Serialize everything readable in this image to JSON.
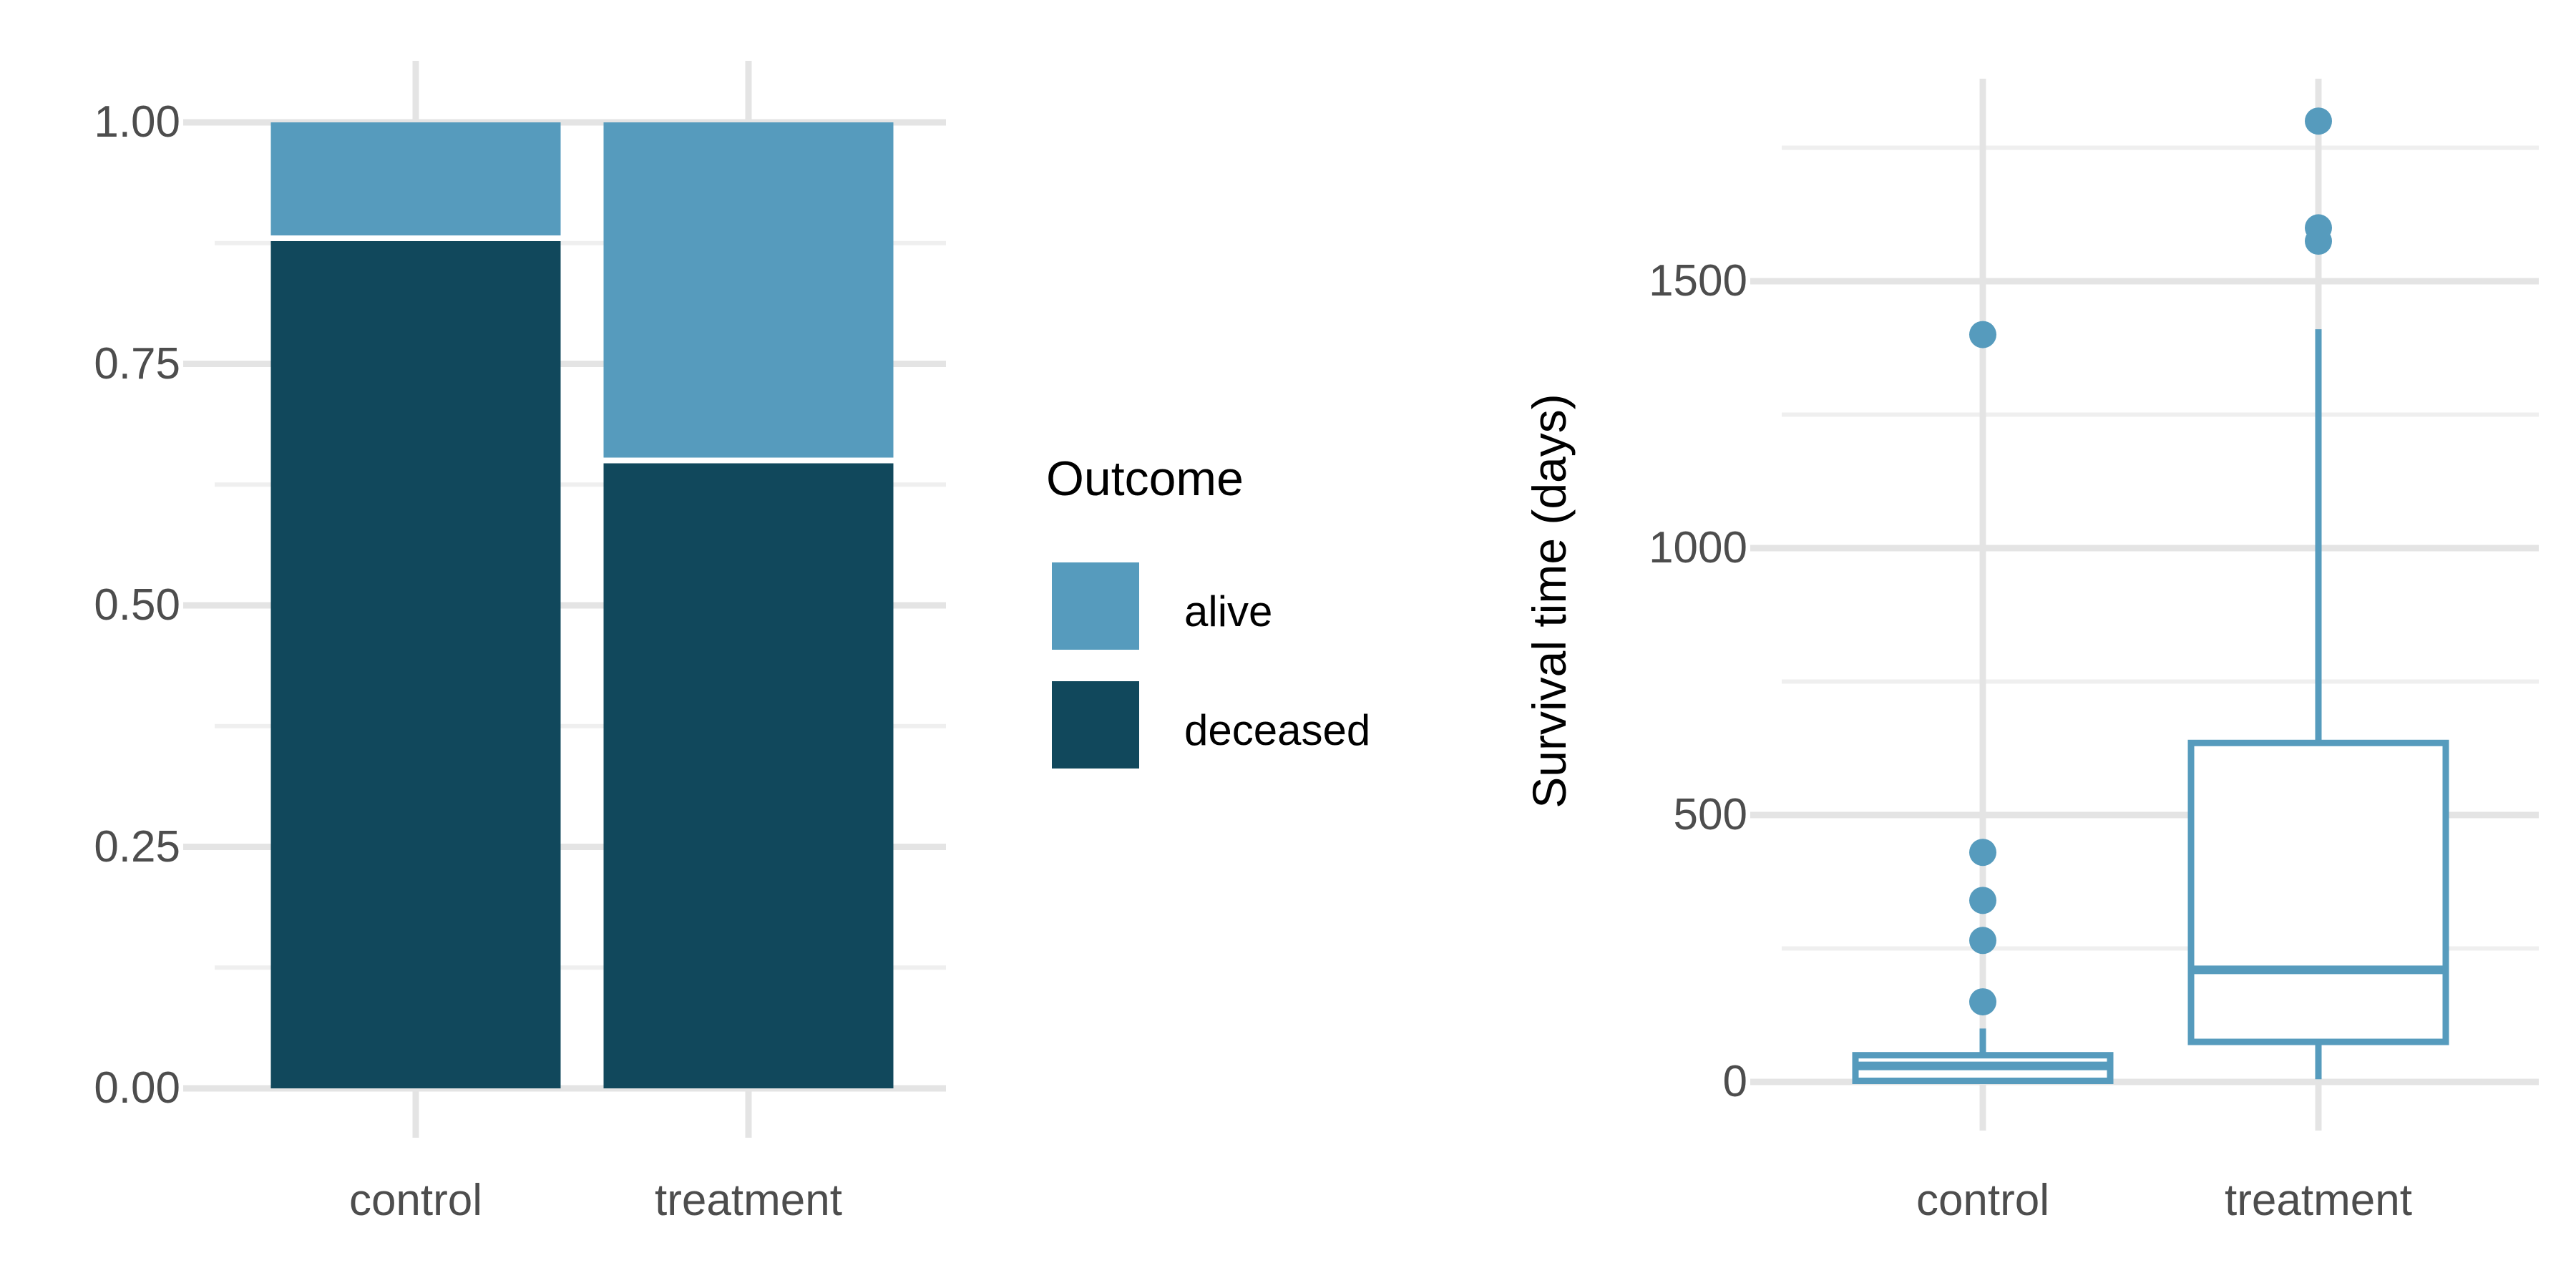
{
  "figure": {
    "background": "#FFFFFF"
  },
  "colors": {
    "alive": "#569BBD",
    "deceased": "#11485C",
    "box_stroke": "#569BBD",
    "grid_major": "#E4E4E4",
    "grid_minor": "#EFEFEF",
    "tick_text": "#4D4D4D",
    "axis_text": "#000000",
    "separator": "#FFFFFF"
  },
  "legend": {
    "title": "Outcome",
    "items": [
      {
        "label": "alive",
        "color": "#569BBD"
      },
      {
        "label": "deceased",
        "color": "#11485C"
      }
    ]
  },
  "left_axis": {
    "yticks": [
      "1.00",
      "0.75",
      "0.50",
      "0.25",
      "0.00"
    ],
    "xlabels": [
      "control",
      "treatment"
    ]
  },
  "right_axis": {
    "title": "Survival time (days)",
    "yticks": [
      "1500",
      "1000",
      "500",
      "0"
    ],
    "xlabels": [
      "control",
      "treatment"
    ]
  },
  "chart_data": [
    {
      "type": "bar",
      "subtype": "stacked-proportion",
      "panel": "left",
      "categories": [
        "control",
        "treatment"
      ],
      "series": [
        {
          "name": "alive",
          "values": [
            0.12,
            0.35
          ]
        },
        {
          "name": "deceased",
          "values": [
            0.88,
            0.65
          ]
        }
      ],
      "title": "",
      "xlabel": "",
      "ylabel": "",
      "ylim": [
        0,
        1
      ],
      "yticks_major": [
        0,
        0.25,
        0.5,
        0.75,
        1.0
      ],
      "yticks_minor": [
        0.125,
        0.375,
        0.625,
        0.875
      ],
      "grid": true,
      "legend_title": "Outcome",
      "legend_position": "right"
    },
    {
      "type": "boxplot",
      "panel": "right",
      "categories": [
        "control",
        "treatment"
      ],
      "title": "",
      "xlabel": "",
      "ylabel": "Survival time (days)",
      "ylim": [
        0,
        1870
      ],
      "yticks_major": [
        0,
        500,
        1000,
        1500
      ],
      "yticks_minor": [
        250,
        750,
        1250,
        1750
      ],
      "grid": true,
      "boxes": [
        {
          "category": "control",
          "whisker_low": 0,
          "q1": 2,
          "median": 30,
          "q3": 50,
          "whisker_high": 100,
          "outliers": [
            150,
            265,
            340,
            430,
            1400
          ]
        },
        {
          "category": "treatment",
          "whisker_low": 5,
          "q1": 75,
          "median": 210,
          "q3": 635,
          "whisker_high": 1410,
          "outliers": [
            1575,
            1600,
            1800
          ]
        }
      ]
    }
  ]
}
